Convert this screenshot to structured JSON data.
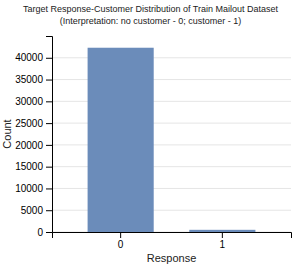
{
  "chart_data": {
    "type": "bar",
    "title": "Target Response-Customer Distribution of Train Mailout Dataset",
    "subtitle": "(Interpretation: no customer - 0; customer - 1)",
    "xlabel": "Response",
    "ylabel": "Count",
    "categories": [
      "0",
      "1"
    ],
    "values": [
      42306,
      500
    ],
    "color": "#6b8cba",
    "ylim": [
      0,
      45000
    ],
    "yticks": [
      0,
      5000,
      10000,
      15000,
      20000,
      25000,
      30000,
      35000,
      40000
    ],
    "grid": true
  }
}
